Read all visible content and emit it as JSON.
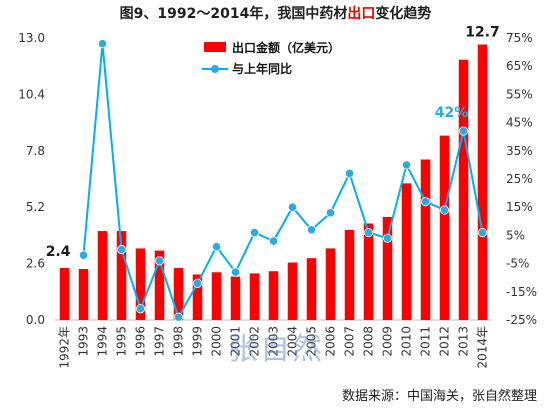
{
  "title": {
    "prefix": "图9、1992～2014年，我国中药材",
    "highlight": "出口",
    "suffix": "变化趋势"
  },
  "watermark": "张自然",
  "source_note": "数据来源：中国海关，张自然整理",
  "colors": {
    "bar": "#ff0000",
    "line": "#00b0f0",
    "marker": "#29abe2",
    "callout_dark": "#1a1a1a",
    "callout_blue": "#29abe2"
  },
  "chart_data": {
    "type": "bar",
    "categories": [
      "1992年",
      "1993",
      "1994",
      "1995",
      "1996",
      "1997",
      "1998",
      "1999",
      "2000",
      "2001",
      "2002",
      "2003",
      "2004",
      "2005",
      "2006",
      "2007",
      "2008",
      "2009",
      "2010",
      "2011",
      "2012",
      "2013",
      "2014年"
    ],
    "series": [
      {
        "name": "出口金额（亿美元）",
        "type": "bar",
        "axis": "left",
        "values": [
          2.4,
          2.35,
          4.1,
          4.1,
          3.3,
          3.2,
          2.4,
          2.1,
          2.2,
          2.0,
          2.15,
          2.25,
          2.65,
          2.85,
          3.3,
          4.15,
          4.45,
          4.75,
          6.3,
          7.4,
          8.5,
          12.0,
          12.7
        ]
      },
      {
        "name": "与上年同比",
        "type": "line",
        "axis": "right",
        "values": [
          null,
          -2,
          73,
          0,
          -21,
          -4,
          -24,
          -12,
          1,
          -8,
          6,
          3,
          15,
          7,
          13,
          27,
          6,
          4,
          30,
          17,
          14,
          42,
          6
        ]
      }
    ],
    "y_left": {
      "min": 0,
      "max": 13.0,
      "ticks": [
        "0.0",
        "2.6",
        "5.2",
        "7.8",
        "10.4",
        "13.0"
      ]
    },
    "y_right": {
      "min": -25,
      "max": 75,
      "ticks": [
        "-25%",
        "-15%",
        "-5%",
        "5%",
        "15%",
        "25%",
        "35%",
        "45%",
        "55%",
        "65%",
        "75%"
      ]
    },
    "annotations": [
      {
        "text": "2.4",
        "category": "1992年",
        "value": 2.4
      },
      {
        "text": "42%",
        "category": "2013",
        "value": 42
      },
      {
        "text": "12.7",
        "category": "2014年",
        "value": 12.7
      }
    ],
    "legend_position": "top-center",
    "grid": false
  }
}
